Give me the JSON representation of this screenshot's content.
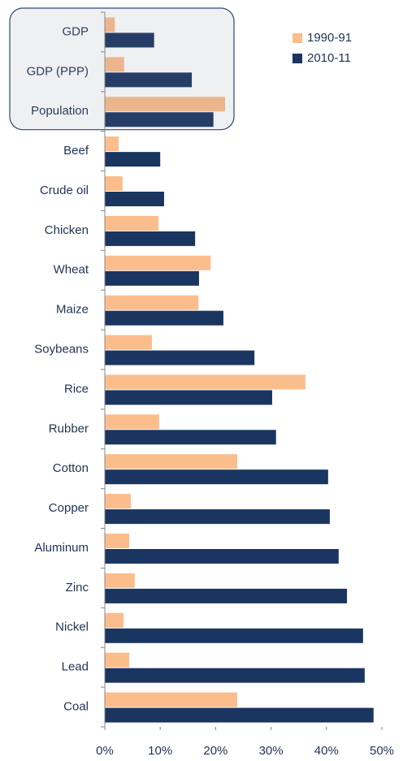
{
  "chart_data": {
    "type": "bar",
    "orientation": "horizontal",
    "categories": [
      "GDP",
      "GDP (PPP)",
      "Population",
      "Beef",
      "Crude oil",
      "Chicken",
      "Wheat",
      "Maize",
      "Soybeans",
      "Rice",
      "Rubber",
      "Cotton",
      "Copper",
      "Aluminum",
      "Zinc",
      "Nickel",
      "Lead",
      "Coal"
    ],
    "series": [
      {
        "name": "1990-91",
        "color": "#fbbd8c",
        "values": [
          1.8,
          3.5,
          21.7,
          2.5,
          3.2,
          9.7,
          19.1,
          16.9,
          8.5,
          36.2,
          9.8,
          23.9,
          4.7,
          4.4,
          5.4,
          3.4,
          4.4,
          23.9
        ]
      },
      {
        "name": "2010-11",
        "color": "#1b3561",
        "values": [
          8.9,
          15.7,
          19.6,
          10.0,
          10.7,
          16.3,
          17.0,
          21.4,
          27.0,
          30.2,
          30.9,
          40.3,
          40.6,
          42.2,
          43.7,
          46.6,
          46.9,
          48.5
        ]
      }
    ],
    "xlim": [
      0,
      50
    ],
    "xticks": [
      {
        "value": 0,
        "label": "0%"
      },
      {
        "value": 10,
        "label": "10%"
      },
      {
        "value": 20,
        "label": "20%"
      },
      {
        "value": 30,
        "label": "30%"
      },
      {
        "value": 40,
        "label": "40%"
      },
      {
        "value": 50,
        "label": "50%"
      }
    ],
    "legend": "top-right"
  }
}
